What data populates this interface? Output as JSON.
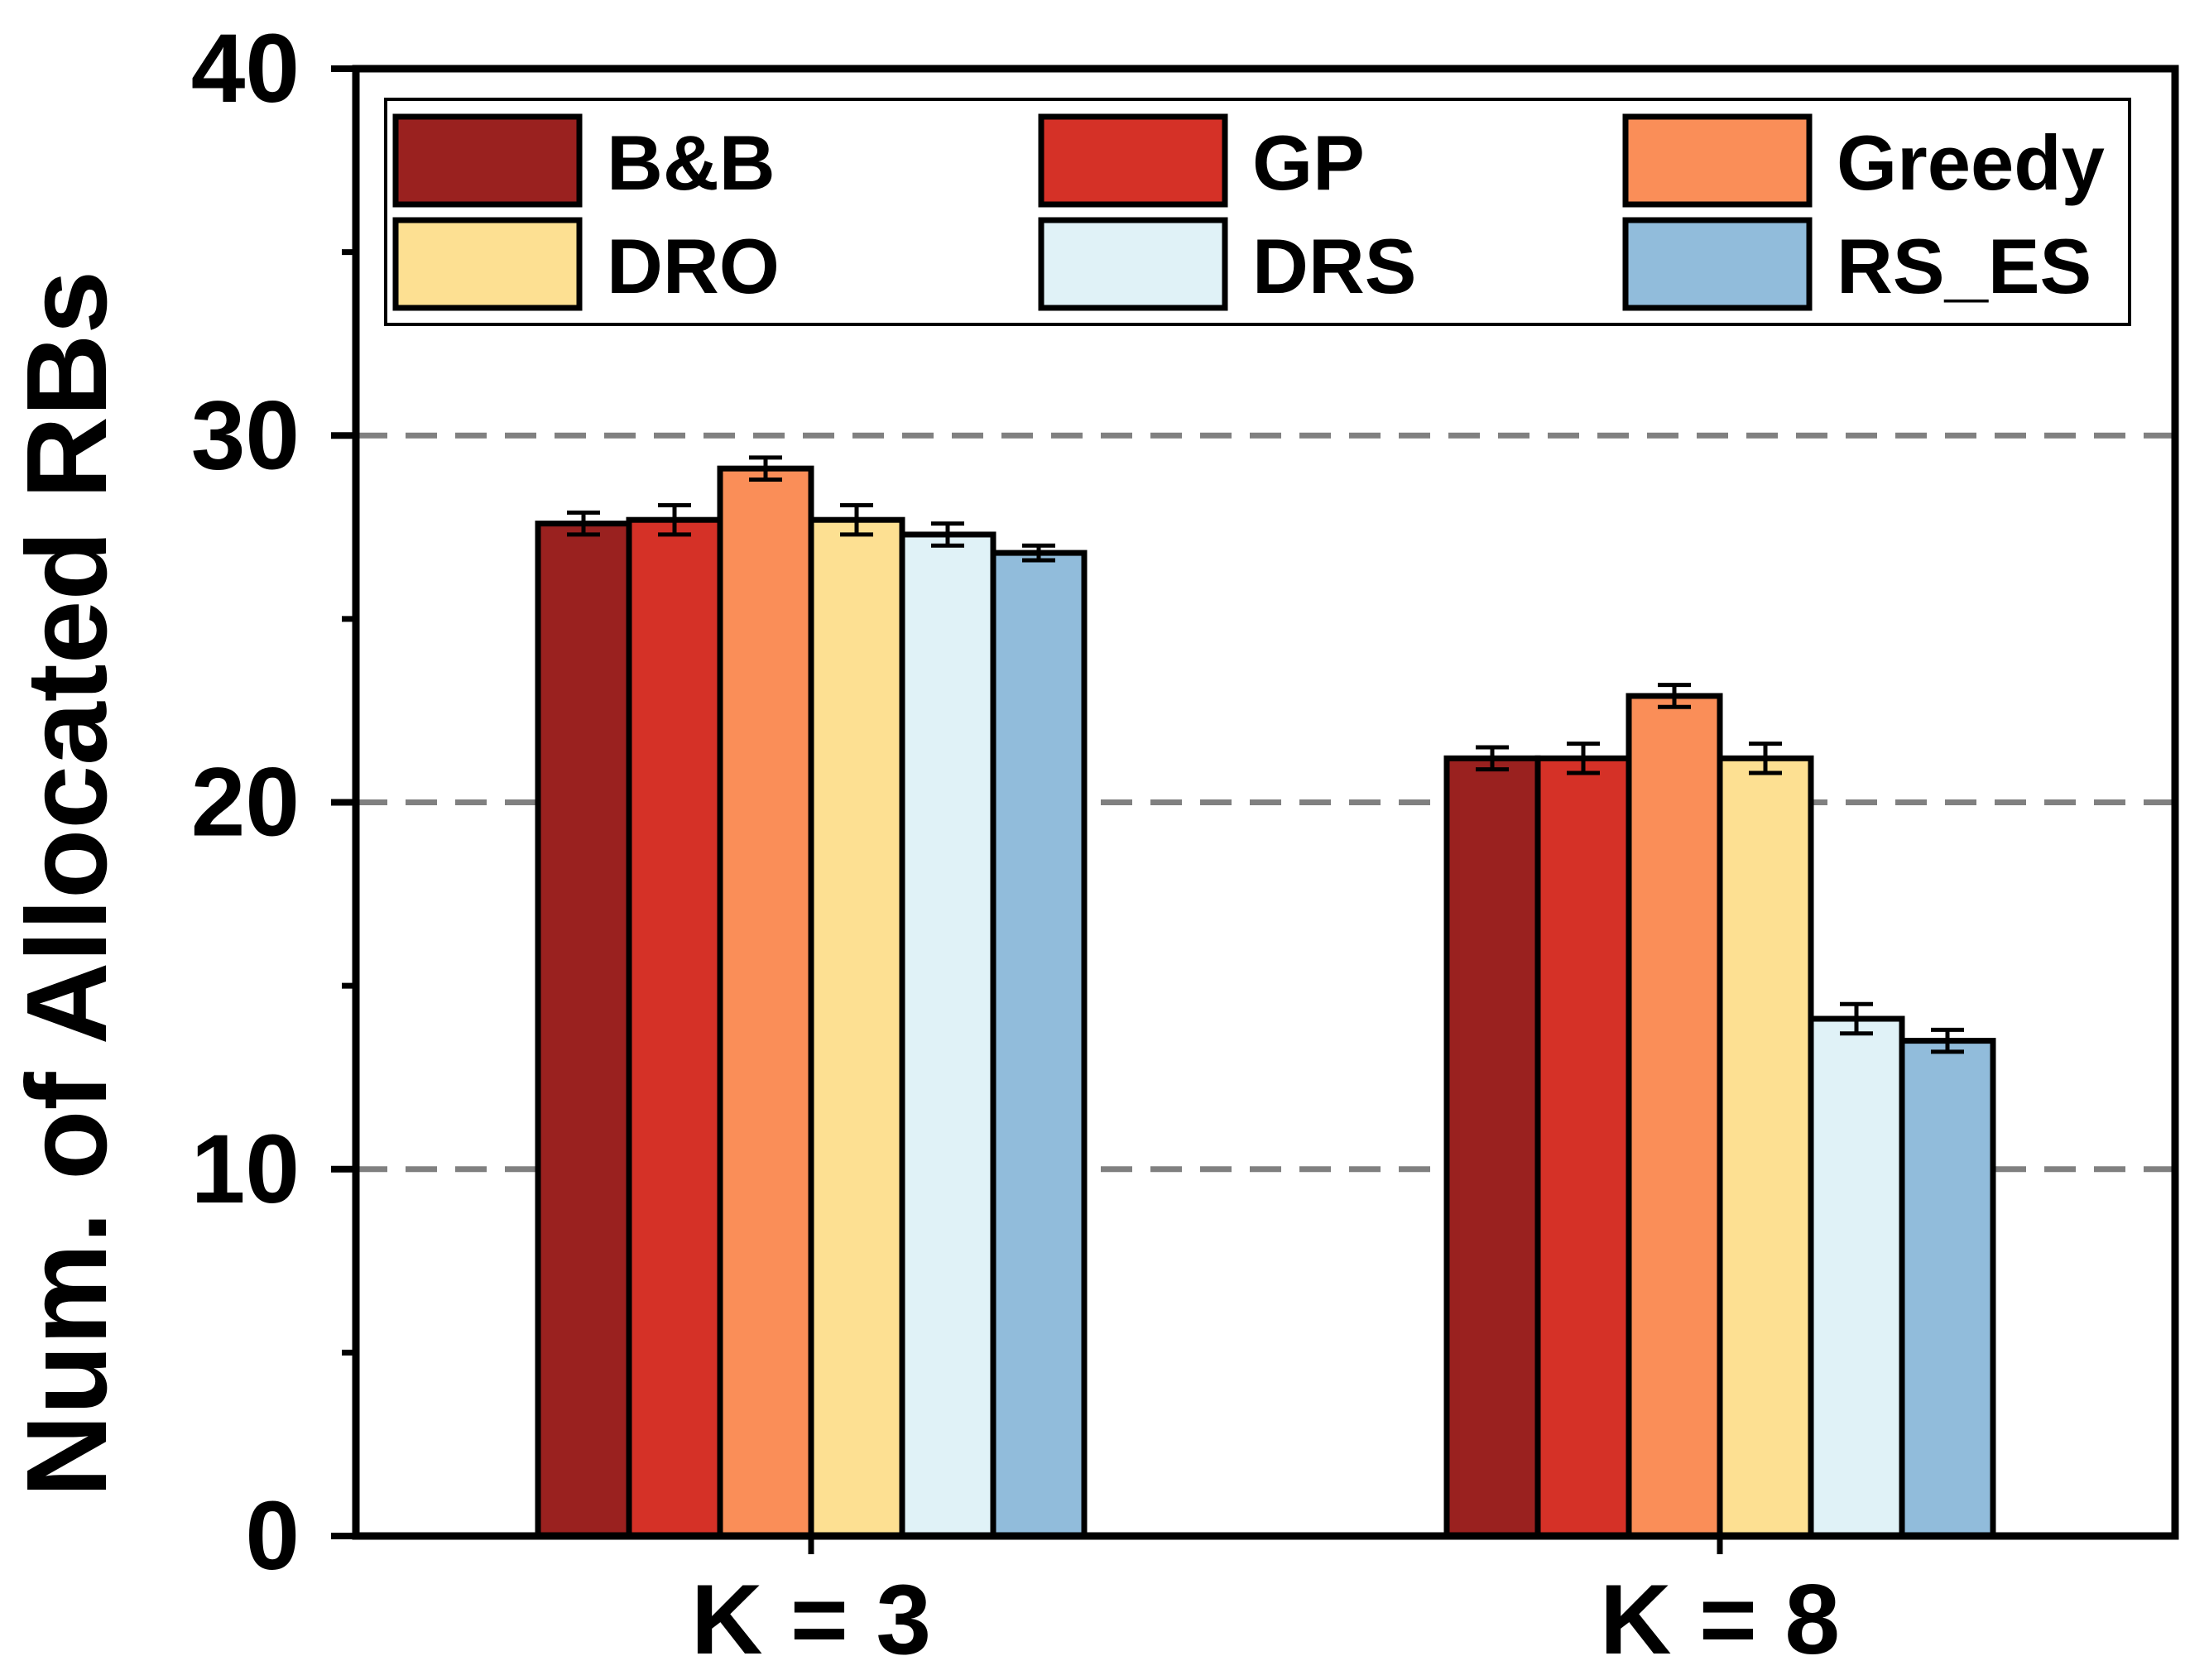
{
  "chart_data": {
    "type": "bar",
    "title": "",
    "xlabel": "",
    "ylabel": "Num. of Allocated RBs",
    "ylim": [
      0,
      40
    ],
    "yticks": [
      0,
      10,
      20,
      30,
      40
    ],
    "minor_tick_step": 5,
    "grid": "dashed horizontal at 10, 20, 30",
    "legend_position": "top",
    "categories": [
      "K = 3",
      "K = 8"
    ],
    "series": [
      {
        "name": "B&B",
        "color": "#9a211f",
        "values": [
          27.6,
          21.2
        ],
        "errors": [
          0.3,
          0.3
        ]
      },
      {
        "name": "GP",
        "color": "#d53127",
        "values": [
          27.7,
          21.2
        ],
        "errors": [
          0.4,
          0.4
        ]
      },
      {
        "name": "Greedy",
        "color": "#fa8e58",
        "values": [
          29.1,
          22.9
        ],
        "errors": [
          0.3,
          0.3
        ]
      },
      {
        "name": "DRO",
        "color": "#fde092",
        "values": [
          27.7,
          21.2
        ],
        "errors": [
          0.4,
          0.4
        ]
      },
      {
        "name": "DRS",
        "color": "#e0f2f7",
        "values": [
          27.3,
          14.1
        ],
        "errors": [
          0.3,
          0.4
        ]
      },
      {
        "name": "RS_ES",
        "color": "#91bcdb",
        "values": [
          26.8,
          13.5
        ],
        "errors": [
          0.2,
          0.3
        ]
      }
    ]
  }
}
